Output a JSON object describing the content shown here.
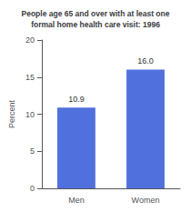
{
  "chart_data": {
    "type": "bar",
    "title": "People age 65 and over with at least one\nformal home health care visit: 1996",
    "categories": [
      "Men",
      "Women"
    ],
    "values": [
      10.9,
      16.0
    ],
    "value_labels": [
      "10.9",
      "16.0"
    ],
    "data_labels": true,
    "ylabel": "Percent",
    "ylim": [
      0,
      20
    ],
    "yticks": [
      0,
      5,
      10,
      15,
      20
    ],
    "grid": false
  }
}
